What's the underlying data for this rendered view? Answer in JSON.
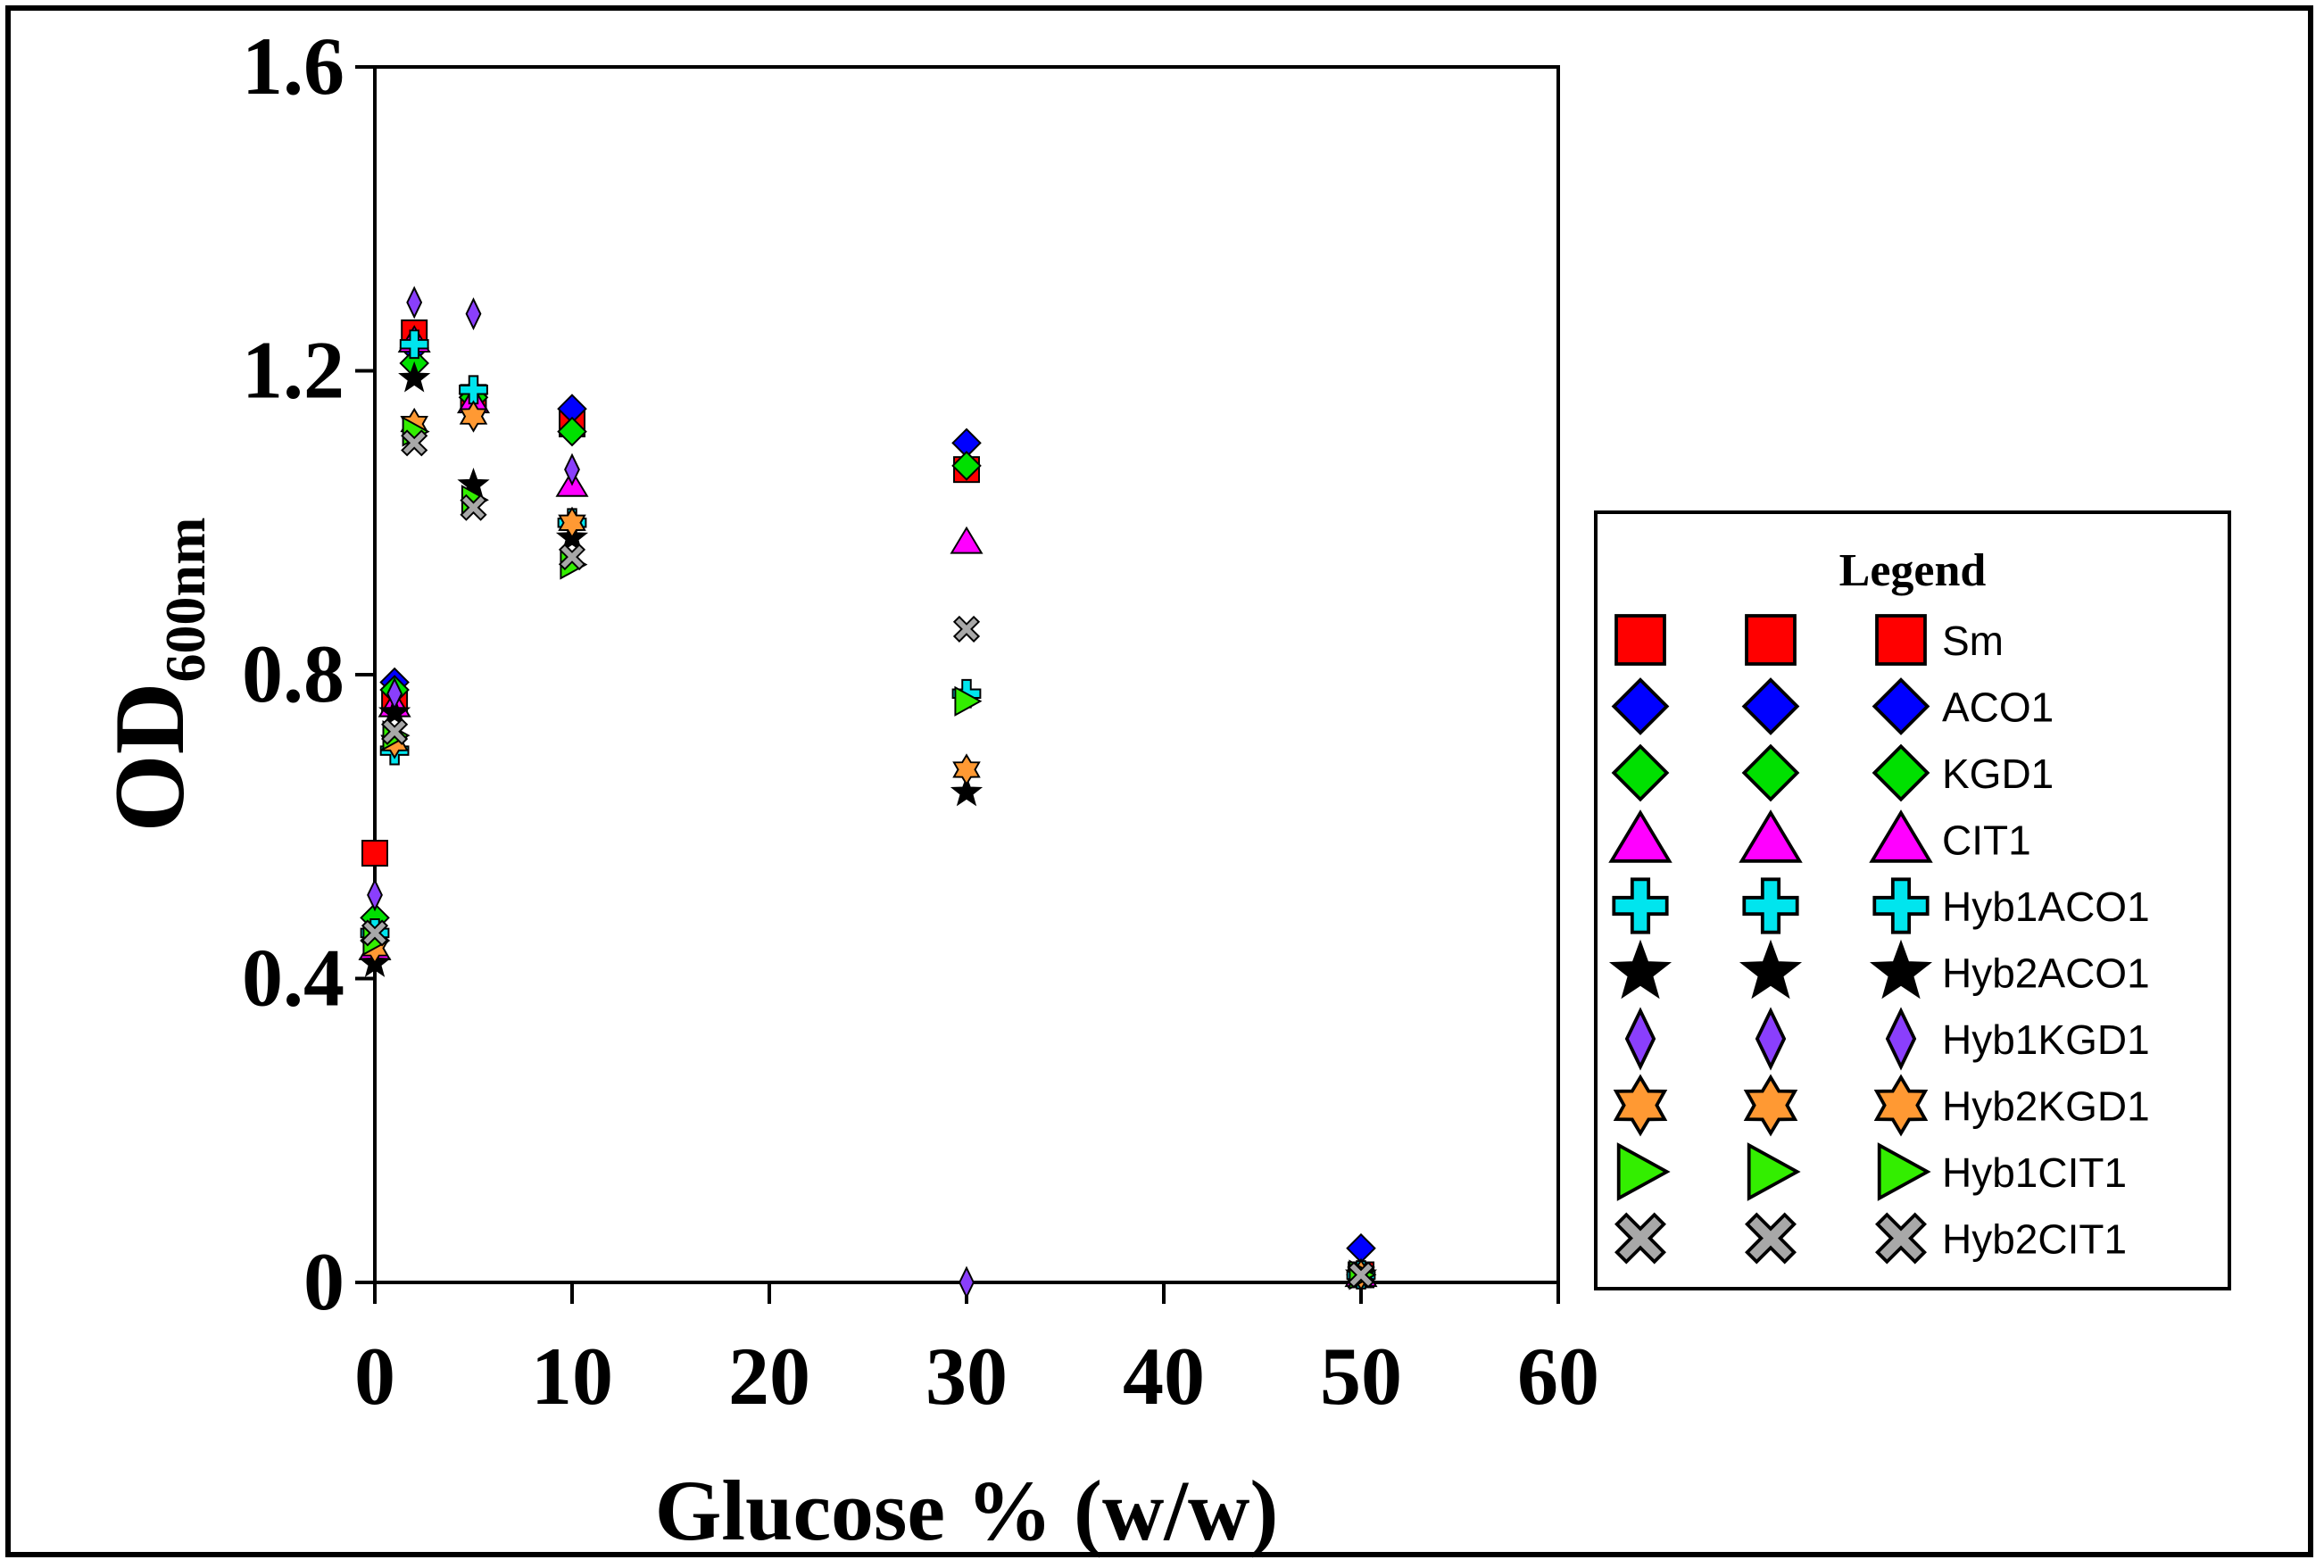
{
  "chart_data": {
    "type": "scatter",
    "title": "",
    "xlabel": "Glucose % (w/w)",
    "ylabel_main": "OD",
    "ylabel_sub": "600nm",
    "xlim": [
      0,
      60
    ],
    "ylim": [
      0,
      1.6
    ],
    "xticks": [
      0,
      10,
      20,
      30,
      40,
      50,
      60
    ],
    "yticks": [
      0,
      0.4,
      0.8,
      1.2,
      1.6
    ],
    "ytick_labels": [
      "0",
      "0.4",
      "0.8",
      "1.2",
      "1.6"
    ],
    "grid": false,
    "legend": {
      "title": "Legend",
      "position": "right"
    },
    "series": [
      {
        "name": "Sm",
        "marker": "square",
        "color": "#ff0000",
        "x": [
          0,
          1,
          2,
          5,
          10,
          30,
          50
        ],
        "y": [
          0.565,
          0.765,
          1.25,
          1.165,
          1.13,
          1.07,
          0.01
        ]
      },
      {
        "name": "ACO1",
        "marker": "diamond",
        "color": "#0000ff",
        "x": [
          0,
          1,
          2,
          5,
          10,
          30,
          50
        ],
        "y": [
          0.45,
          0.79,
          1.23,
          1.17,
          1.15,
          1.105,
          0.045
        ]
      },
      {
        "name": "KGD1",
        "marker": "diamond",
        "color": "#00e000",
        "x": [
          0,
          1,
          2,
          5,
          10,
          30,
          50
        ],
        "y": [
          0.48,
          0.78,
          1.21,
          1.165,
          1.12,
          1.075,
          0.01
        ]
      },
      {
        "name": "CIT1",
        "marker": "triangle-up",
        "color": "#ff00ff",
        "x": [
          0,
          1,
          2,
          5,
          10,
          30,
          50
        ],
        "y": [
          0.44,
          0.76,
          1.24,
          1.16,
          1.05,
          0.975,
          0.01
        ]
      },
      {
        "name": "Hyb1ACO1",
        "marker": "plus",
        "color": "#00e5ee",
        "x": [
          0,
          1,
          2,
          5,
          10,
          30,
          50
        ],
        "y": [
          0.46,
          0.7,
          1.235,
          1.175,
          1.0,
          0.775,
          0.01
        ]
      },
      {
        "name": "Hyb2ACO1",
        "marker": "star5",
        "color": "#000000",
        "x": [
          0,
          1,
          2,
          5,
          10,
          30,
          50
        ],
        "y": [
          0.42,
          0.75,
          1.19,
          1.05,
          0.98,
          0.645,
          0.01
        ]
      },
      {
        "name": "Hyb1KGD1",
        "marker": "thin-diamond",
        "color": "#8a3ffc",
        "x": [
          0,
          1,
          2,
          5,
          10,
          30,
          50
        ],
        "y": [
          0.51,
          0.775,
          1.29,
          1.275,
          1.07,
          0.0,
          0.01
        ]
      },
      {
        "name": "Hyb2KGD1",
        "marker": "star6",
        "color": "#ff9933",
        "x": [
          0,
          1,
          2,
          5,
          10,
          30,
          50
        ],
        "y": [
          0.44,
          0.71,
          1.13,
          1.14,
          1.0,
          0.675,
          0.01
        ]
      },
      {
        "name": "Hyb1CIT1",
        "marker": "triangle-right",
        "color": "#33ee00",
        "x": [
          0,
          1,
          2,
          5,
          10,
          30,
          50
        ],
        "y": [
          0.45,
          0.72,
          1.12,
          1.03,
          0.945,
          0.765,
          0.01
        ]
      },
      {
        "name": "Hyb2CIT1",
        "marker": "x",
        "color": "#a8a8a8",
        "x": [
          0,
          1,
          2,
          5,
          10,
          30,
          50
        ],
        "y": [
          0.46,
          0.725,
          1.105,
          1.02,
          0.955,
          0.86,
          0.01
        ]
      }
    ]
  }
}
